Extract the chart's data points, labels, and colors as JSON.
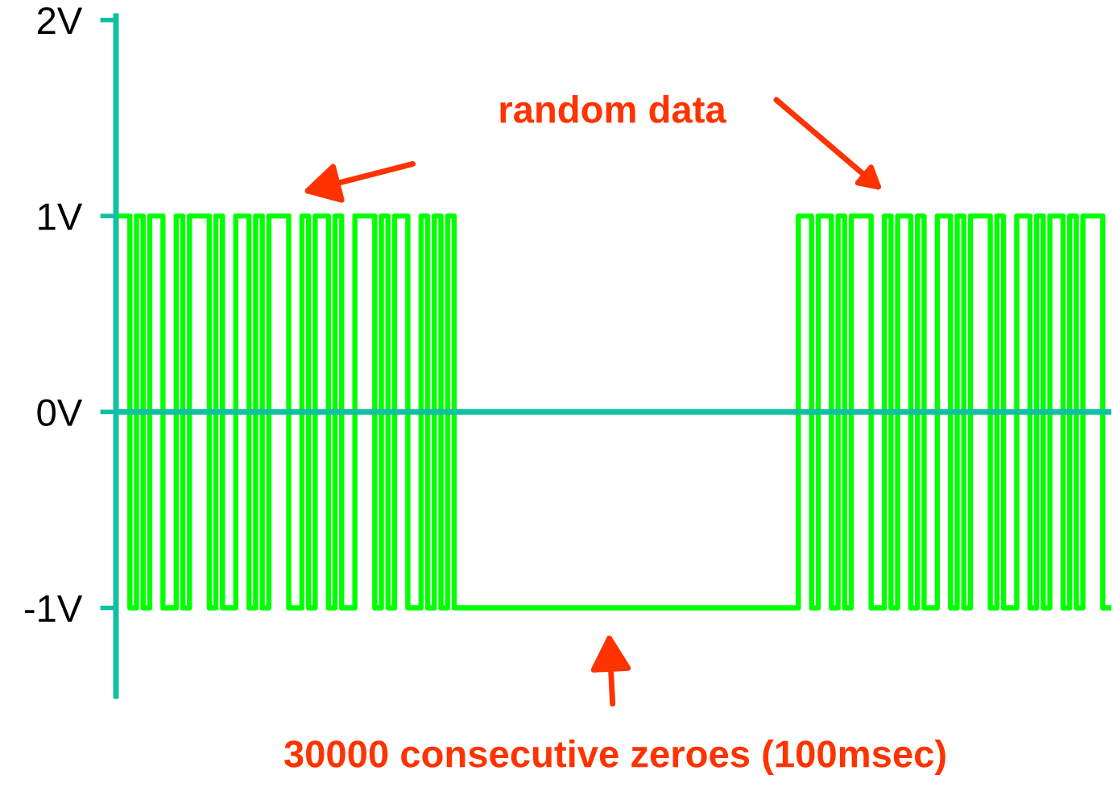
{
  "chart_data": {
    "type": "step",
    "categories": [
      null,
      null,
      null,
      null,
      null,
      null,
      null,
      null,
      null,
      null,
      null,
      null,
      null,
      null,
      null,
      null,
      null,
      null,
      null,
      null,
      null,
      null,
      null,
      null,
      null,
      null,
      null,
      null,
      null,
      null,
      null,
      null,
      null,
      null,
      null,
      null,
      null,
      null,
      null,
      null,
      null,
      null,
      null,
      null,
      null,
      null,
      null,
      null,
      null,
      null,
      null,
      null,
      null,
      null,
      null,
      null,
      null,
      null,
      null,
      null,
      null,
      null,
      null,
      null,
      null,
      null,
      null,
      null,
      null,
      null,
      null,
      null,
      null,
      null,
      null,
      null,
      null,
      null,
      null,
      null,
      null,
      null,
      null,
      null,
      null,
      null,
      null,
      null,
      null,
      null,
      null,
      null,
      null,
      null,
      null,
      null,
      null,
      null,
      null,
      null,
      null,
      null,
      null,
      null,
      null,
      null,
      null,
      null,
      null,
      null,
      null,
      null,
      null,
      null,
      null,
      null,
      null,
      null,
      null,
      null,
      null,
      null,
      null,
      null,
      null,
      null,
      null,
      null,
      null,
      null,
      null,
      null,
      null,
      null,
      null,
      null,
      null,
      null,
      null,
      null,
      null,
      null,
      null,
      null,
      null,
      null,
      null,
      null,
      null,
      null
    ],
    "values": [
      1,
      1,
      -1,
      1,
      -1,
      1,
      1,
      -1,
      -1,
      1,
      -1,
      1,
      1,
      1,
      -1,
      1,
      -1,
      -1,
      1,
      1,
      -1,
      1,
      -1,
      1,
      1,
      1,
      -1,
      -1,
      1,
      -1,
      1,
      1,
      -1,
      1,
      -1,
      -1,
      1,
      1,
      1,
      -1,
      1,
      -1,
      1,
      1,
      -1,
      -1,
      1,
      -1,
      1,
      -1,
      1,
      -1,
      -1,
      -1,
      -1,
      -1,
      -1,
      -1,
      -1,
      -1,
      -1,
      -1,
      -1,
      -1,
      -1,
      -1,
      -1,
      -1,
      -1,
      -1,
      -1,
      -1,
      -1,
      -1,
      -1,
      -1,
      -1,
      -1,
      -1,
      -1,
      -1,
      -1,
      -1,
      -1,
      -1,
      -1,
      -1,
      -1,
      -1,
      -1,
      -1,
      -1,
      -1,
      -1,
      -1,
      -1,
      -1,
      -1,
      -1,
      -1,
      -1,
      -1,
      -1,
      1,
      1,
      -1,
      1,
      1,
      -1,
      1,
      -1,
      1,
      1,
      1,
      -1,
      -1,
      1,
      -1,
      1,
      1,
      -1,
      1,
      -1,
      -1,
      1,
      1,
      -1,
      1,
      -1,
      1,
      1,
      1,
      -1,
      1,
      -1,
      -1,
      1,
      1,
      -1,
      1,
      -1,
      1,
      1,
      -1,
      1,
      -1,
      1,
      1,
      1,
      -1
    ],
    "color": "#00ff00",
    "ylim": [
      -1.45,
      2.02
    ],
    "yticks": [
      {
        "value": 2,
        "label": "2V"
      },
      {
        "value": 1,
        "label": "1V"
      },
      {
        "value": 0,
        "label": "0V"
      },
      {
        "value": -1,
        "label": "-1V"
      }
    ],
    "ref_lines": [
      {
        "axis": "y",
        "value": 0,
        "color": "#10c0a0"
      }
    ],
    "annotations": [
      "random data",
      "30000 consecutive zeroes (100msec)"
    ]
  }
}
